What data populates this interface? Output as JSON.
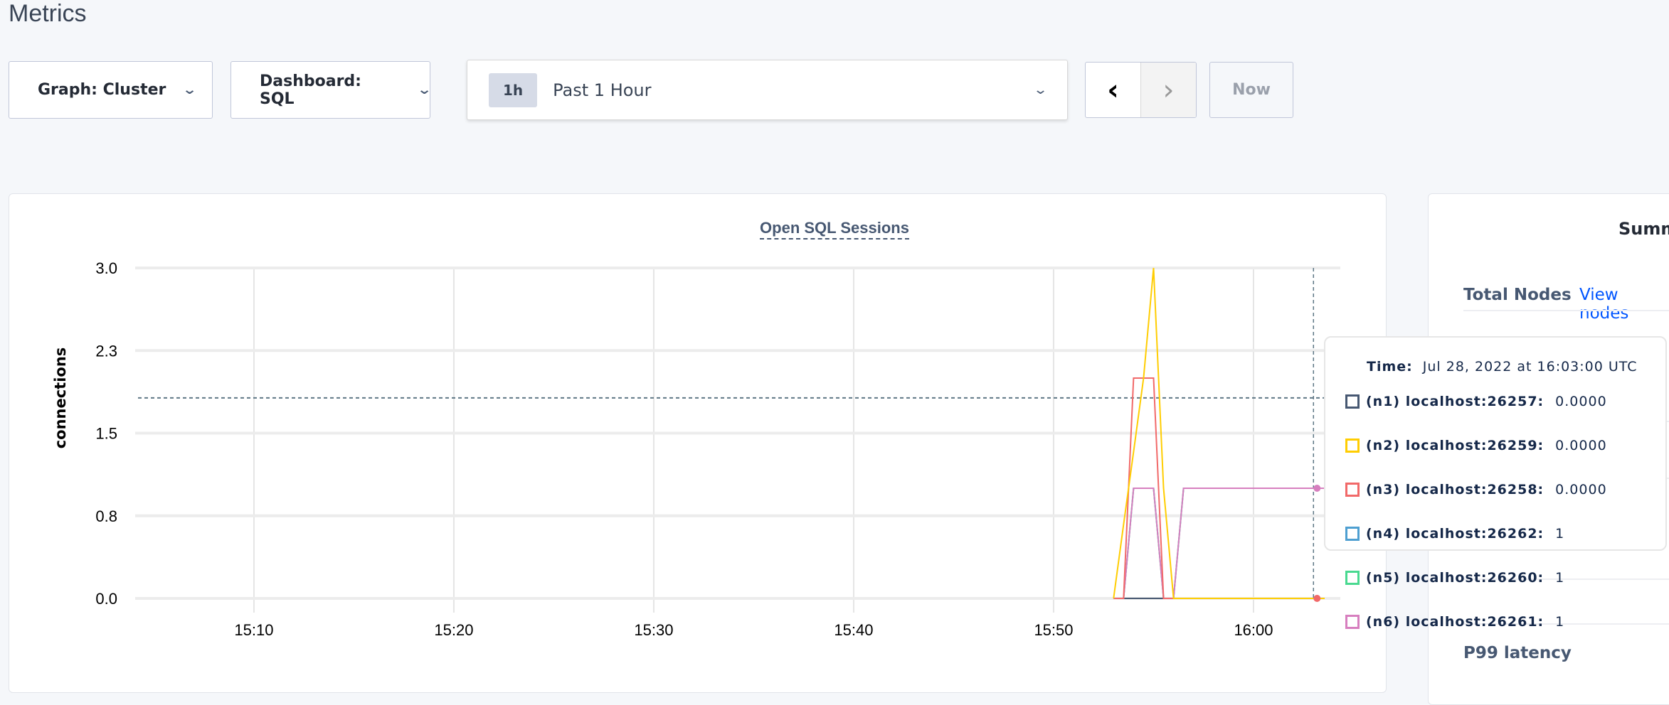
{
  "page": {
    "title": "Metrics"
  },
  "toolbar": {
    "graph_select": "Graph: Cluster",
    "dashboard_select": "Dashboard: SQL",
    "time_badge": "1h",
    "time_range": "Past 1 Hour",
    "prev_label": "‹",
    "next_label": "›",
    "now_label": "Now"
  },
  "chart_data": {
    "type": "line",
    "title": "Open SQL Sessions",
    "ylabel": "connections",
    "xlabel": "",
    "xlim": [
      "15:04",
      "16:04"
    ],
    "ylim": [
      0,
      3
    ],
    "yticks": [
      {
        "value": 0,
        "label": "0.0"
      },
      {
        "value": 0.75,
        "label": "0.8"
      },
      {
        "value": 1.5,
        "label": "1.5"
      },
      {
        "value": 2.25,
        "label": "2.3"
      },
      {
        "value": 3,
        "label": "3.0"
      }
    ],
    "xticks": [
      "15:10",
      "15:20",
      "15:30",
      "15:40",
      "15:50",
      "16:00"
    ],
    "grid": true,
    "hover_time": "16:03",
    "hover_value_line": 1.82,
    "x": [
      "15:53:00",
      "15:53:30",
      "15:54:00",
      "15:54:30",
      "15:55:00",
      "15:55:30",
      "15:56:00",
      "15:56:30",
      "15:57:00",
      "15:58:00",
      "15:59:00",
      "16:00:00",
      "16:01:00",
      "16:02:00",
      "16:03:00"
    ],
    "series": [
      {
        "name": "(n1) localhost:26257",
        "color": "#475872",
        "values": [
          0,
          0,
          0,
          0,
          0,
          0,
          0,
          0,
          0,
          0,
          0,
          0,
          0,
          0,
          0
        ]
      },
      {
        "name": "(n2) localhost:26259",
        "color": "#ffcd02",
        "values": [
          0,
          0.67,
          1.33,
          2,
          3,
          1,
          0,
          0,
          0,
          0,
          0,
          0,
          0,
          0,
          0
        ]
      },
      {
        "name": "(n3) localhost:26258",
        "color": "#f16969",
        "values": [
          0,
          0,
          2,
          2,
          2,
          0,
          0,
          0,
          0,
          0,
          0,
          0,
          0,
          0,
          0
        ]
      },
      {
        "name": "(n4) localhost:26262",
        "color": "#4e9fd1",
        "values": [
          0,
          0,
          1,
          1,
          1,
          0,
          0,
          1,
          1,
          1,
          1,
          1,
          1,
          1,
          1
        ]
      },
      {
        "name": "(n5) localhost:26260",
        "color": "#49d990",
        "values": [
          0,
          0,
          1,
          1,
          1,
          0,
          0,
          1,
          1,
          1,
          1,
          1,
          1,
          1,
          1
        ]
      },
      {
        "name": "(n6) localhost:26261",
        "color": "#d77fbf",
        "values": [
          0,
          0,
          1,
          1,
          1,
          0,
          0,
          1,
          1,
          1,
          1,
          1,
          1,
          1,
          1
        ]
      }
    ]
  },
  "tooltip": {
    "time_label": "Time:",
    "time_value": "Jul 28, 2022 at 16:03:00 UTC",
    "rows": [
      {
        "label": "(n1) localhost:26257:",
        "value": "0.0000"
      },
      {
        "label": "(n2) localhost:26259:",
        "value": "0.0000"
      },
      {
        "label": "(n3) localhost:26258:",
        "value": "0.0000"
      },
      {
        "label": "(n4) localhost:26262:",
        "value": "1"
      },
      {
        "label": "(n5) localhost:26260:",
        "value": "1"
      },
      {
        "label": "(n6) localhost:26261:",
        "value": "1"
      }
    ]
  },
  "summary": {
    "heading": "Summ",
    "total_nodes_label": "Total Nodes",
    "view_nodes_link": "View nodes",
    "p99_label": "P99 latency"
  }
}
